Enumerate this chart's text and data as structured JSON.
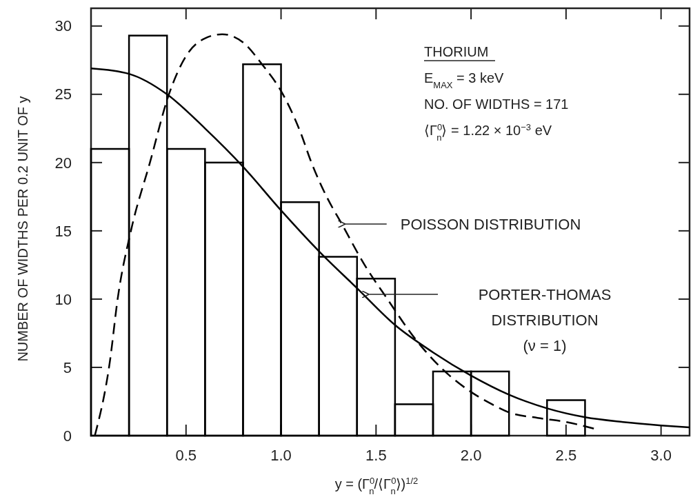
{
  "chart_data": {
    "type": "histogram",
    "xlabel": "y = (Γ$^{0}$$_{n}$/⟨Γ$^{0}$$_{n}$⟩)$^{1/2}$",
    "ylabel": "NUMBER OF WIDTHS PER 0.2 UNIT OF y",
    "bins": [
      0,
      0.2,
      0.4,
      0.6,
      0.8,
      1.0,
      1.2,
      1.4,
      1.6,
      1.8,
      2.0,
      2.2,
      2.4,
      2.6
    ],
    "values": [
      21,
      29.3,
      21,
      20,
      27.2,
      17.1,
      13.1,
      11.5,
      2.3,
      4.7,
      4.7,
      0,
      2.6
    ],
    "color": "#000000",
    "series": [
      {
        "type": "line",
        "line_style": "solid",
        "color": "#000000",
        "x": [
          0,
          0.2,
          0.4,
          0.6,
          0.8,
          1.0,
          1.2,
          1.4,
          1.6,
          1.8,
          2.0,
          2.2,
          2.4,
          2.6,
          2.8,
          3.0,
          3.15
        ],
        "values": [
          26.9,
          26.5,
          25.0,
          22.5,
          19.7,
          16.5,
          13.5,
          10.8,
          8.1,
          6.1,
          4.4,
          3.0,
          2.0,
          1.35,
          1.0,
          0.75,
          0.6
        ]
      },
      {
        "type": "line",
        "line_style": "dashed",
        "color": "#000000",
        "x": [
          0.02,
          0.1,
          0.14,
          0.21,
          0.31,
          0.41,
          0.5,
          0.6,
          0.69,
          0.8,
          0.9,
          1.01,
          1.1,
          1.16,
          1.24,
          1.32,
          1.44,
          1.56,
          1.7,
          1.84,
          2.0,
          2.11,
          2.2,
          2.35,
          2.5,
          2.65
        ],
        "values": [
          0,
          5.5,
          10,
          15,
          20,
          25,
          27.8,
          29.1,
          29.4,
          28.8,
          27.2,
          25,
          22.3,
          20,
          17.5,
          15.5,
          12.5,
          10,
          7.2,
          5,
          3.2,
          2.3,
          1.7,
          1.3,
          1.0,
          0.5
        ]
      }
    ],
    "xlim": [
      0,
      3.15
    ],
    "ylim": [
      0,
      31.3
    ],
    "xticks": [
      0.5,
      {
        "value": 1,
        "label": "1.0"
      },
      1.5,
      {
        "value": 2,
        "label": "2.0"
      },
      2.5,
      {
        "value": 3,
        "label": "3.0"
      }
    ],
    "yticks": [
      0,
      5,
      10,
      15,
      20,
      25,
      30
    ],
    "grid": false,
    "annotations": [
      "THORIUM",
      "E$_{MAX}$ = 3 keV",
      "NO. OF WIDTHS = 171",
      "⟨Γ$^{0}$$_{n}$⟩ = 1.22 × 10$^{−3}$ eV",
      "PORTER-THOMAS\nDISTRIBUTION\n(ν = 1)",
      {
        "text": "POISSON DISTRIBUTION",
        "x": 1.32,
        "y": 15.5
      }
    ]
  }
}
